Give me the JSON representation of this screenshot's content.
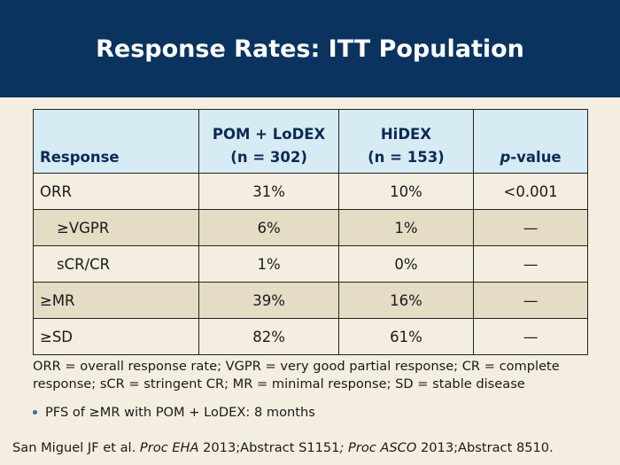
{
  "title": "Response Rates: ITT Population",
  "table": {
    "headers": {
      "response": "Response",
      "arm1_line1": "POM + LoDEX",
      "arm1_line2": "(n = 302)",
      "arm2_line1": "HiDEX",
      "arm2_line2": "(n = 153)",
      "p_italic": "p",
      "p_rest": "-value"
    },
    "rows": [
      {
        "label": "ORR",
        "arm1": "31%",
        "arm2": "10%",
        "p": "<0.001"
      },
      {
        "label": "≥VGPR",
        "arm1": "6%",
        "arm2": "1%",
        "p": "—"
      },
      {
        "label": "sCR/CR",
        "arm1": "1%",
        "arm2": "0%",
        "p": "—"
      },
      {
        "label": "≥MR",
        "arm1": "39%",
        "arm2": "16%",
        "p": "—"
      },
      {
        "label": "≥SD",
        "arm1": "82%",
        "arm2": "61%",
        "p": "—"
      }
    ]
  },
  "footnote": "ORR = overall response rate; VGPR = very good partial response; CR = complete response; sCR = stringent CR; MR = minimal response; SD = stable disease",
  "bullet": "PFS of ≥MR with POM + LoDEX: 8 months",
  "citation": {
    "part1": "San Miguel JF et al. ",
    "part2": "Proc EHA",
    "part3": " 2013;Abstract S1151",
    "part4": "; Proc ASCO",
    "part5": " 2013;Abstract 8510."
  },
  "colors": {
    "title_bar": "#0b3360",
    "header_fill": "#d7ebf5",
    "row_light": "#f3eee0",
    "row_dark": "#e4dcc4",
    "background": "#f3eee0"
  }
}
